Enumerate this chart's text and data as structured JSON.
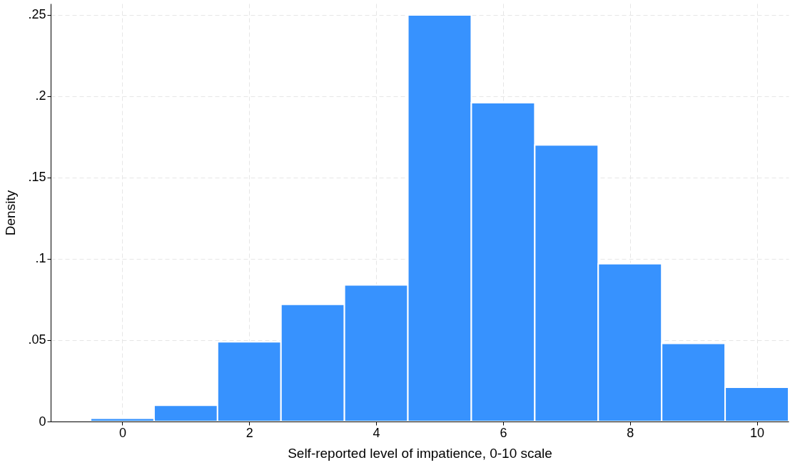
{
  "chart_data": {
    "type": "histogram",
    "xlabel": "Self-reported level of impatience, 0-10 scale",
    "ylabel": "Density",
    "bins": [
      -0.5,
      0.5,
      1.5,
      2.5,
      3.5,
      4.5,
      5.5,
      6.5,
      7.5,
      8.5,
      9.5,
      10.5
    ],
    "values": [
      0.002,
      0.01,
      0.049,
      0.072,
      0.084,
      0.25,
      0.196,
      0.17,
      0.097,
      0.048,
      0.021
    ],
    "color": "#3792fe",
    "xlim": [
      -1.13,
      10.5
    ],
    "xticks": [
      0,
      2,
      4,
      6,
      8,
      10
    ],
    "ylim": [
      0,
      0.257
    ],
    "yticks": [
      0,
      {
        "value": 0.05,
        "label": ".05"
      },
      {
        "value": 0.1,
        "label": ".1"
      },
      {
        "value": 0.15,
        "label": ".15"
      },
      {
        "value": 0.2,
        "label": ".2"
      },
      {
        "value": 0.25,
        "label": ".25"
      }
    ],
    "grid": true
  }
}
